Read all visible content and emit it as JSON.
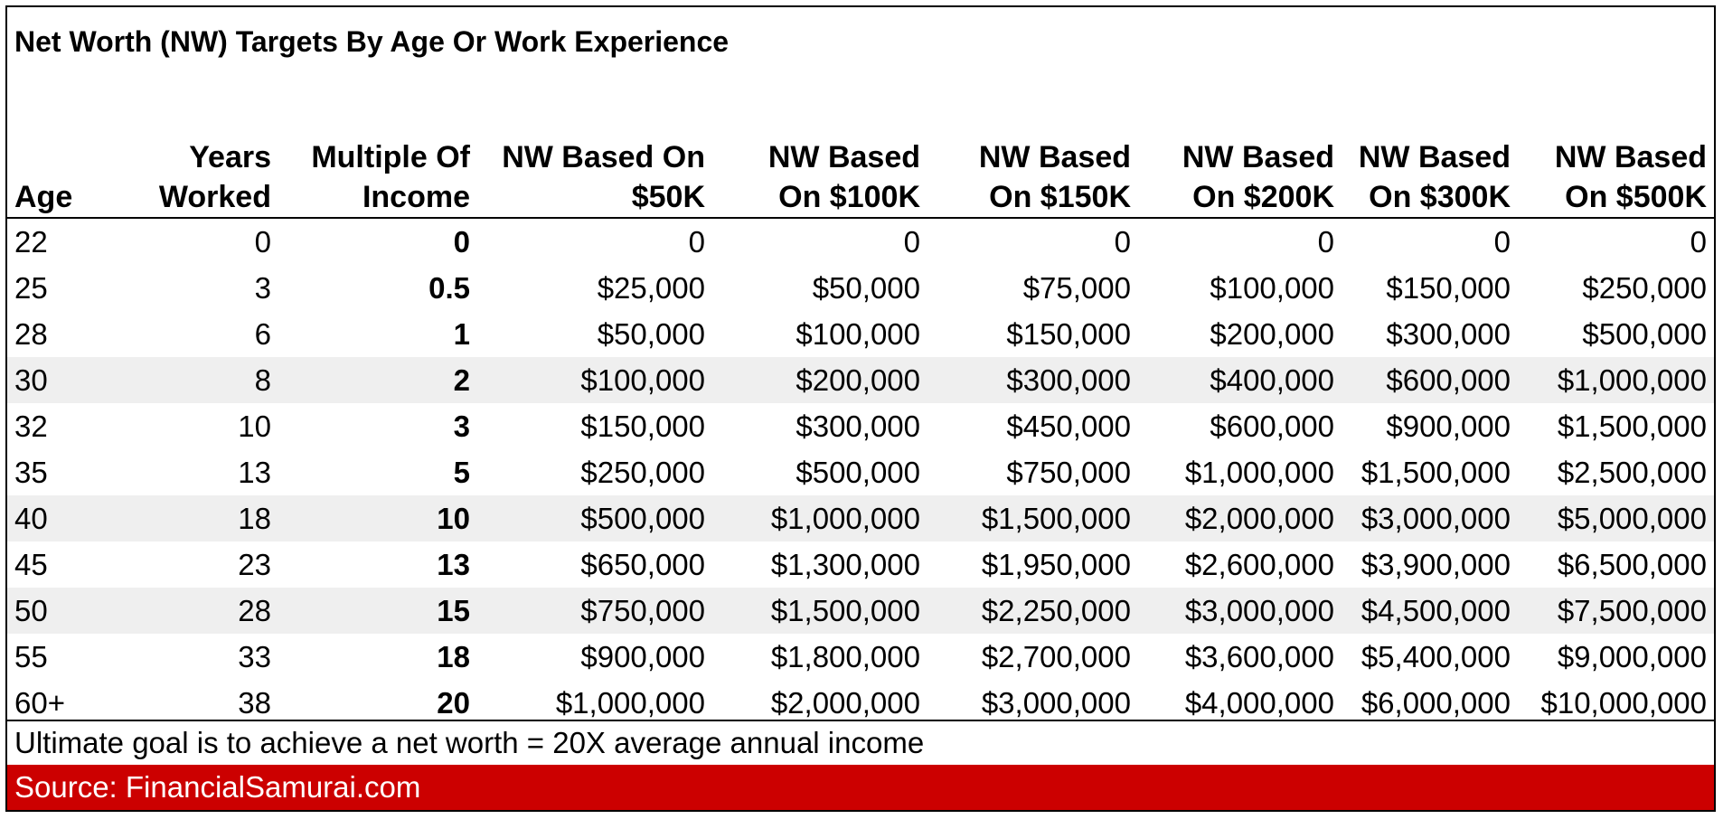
{
  "title": "Net Worth (NW) Targets By Age Or Work Experience",
  "headers": [
    [
      "",
      "Age"
    ],
    [
      "Years",
      "Worked"
    ],
    [
      "Multiple Of",
      "Income"
    ],
    [
      "NW Based On",
      "$50K"
    ],
    [
      "NW Based",
      "On $100K"
    ],
    [
      "NW Based",
      "On $150K"
    ],
    [
      "NW Based",
      "On $200K"
    ],
    [
      "NW Based",
      "On $300K"
    ],
    [
      "NW Based",
      "On $500K"
    ]
  ],
  "rows": [
    {
      "shaded": false,
      "cells": [
        "22",
        "0",
        "0",
        "0",
        "0",
        "0",
        "0",
        "0",
        "0"
      ]
    },
    {
      "shaded": false,
      "cells": [
        "25",
        "3",
        "0.5",
        "$25,000",
        "$50,000",
        "$75,000",
        "$100,000",
        "$150,000",
        "$250,000"
      ]
    },
    {
      "shaded": false,
      "cells": [
        "28",
        "6",
        "1",
        "$50,000",
        "$100,000",
        "$150,000",
        "$200,000",
        "$300,000",
        "$500,000"
      ]
    },
    {
      "shaded": true,
      "cells": [
        "30",
        "8",
        "2",
        "$100,000",
        "$200,000",
        "$300,000",
        "$400,000",
        "$600,000",
        "$1,000,000"
      ]
    },
    {
      "shaded": false,
      "cells": [
        "32",
        "10",
        "3",
        "$150,000",
        "$300,000",
        "$450,000",
        "$600,000",
        "$900,000",
        "$1,500,000"
      ]
    },
    {
      "shaded": false,
      "cells": [
        "35",
        "13",
        "5",
        "$250,000",
        "$500,000",
        "$750,000",
        "$1,000,000",
        "$1,500,000",
        "$2,500,000"
      ]
    },
    {
      "shaded": true,
      "cells": [
        "40",
        "18",
        "10",
        "$500,000",
        "$1,000,000",
        "$1,500,000",
        "$2,000,000",
        "$3,000,000",
        "$5,000,000"
      ]
    },
    {
      "shaded": false,
      "cells": [
        "45",
        "23",
        "13",
        "$650,000",
        "$1,300,000",
        "$1,950,000",
        "$2,600,000",
        "$3,900,000",
        "$6,500,000"
      ]
    },
    {
      "shaded": true,
      "cells": [
        "50",
        "28",
        "15",
        "$750,000",
        "$1,500,000",
        "$2,250,000",
        "$3,000,000",
        "$4,500,000",
        "$7,500,000"
      ]
    },
    {
      "shaded": false,
      "cells": [
        "55",
        "33",
        "18",
        "$900,000",
        "$1,800,000",
        "$2,700,000",
        "$3,600,000",
        "$5,400,000",
        "$9,000,000"
      ]
    },
    {
      "shaded": false,
      "cells": [
        "60+",
        "38",
        "20",
        "$1,000,000",
        "$2,000,000",
        "$3,000,000",
        "$4,000,000",
        "$6,000,000",
        "$10,000,000"
      ]
    }
  ],
  "note": "Ultimate goal is to achieve a net worth = 20X average annual income",
  "source": "Source: FinancialSamurai.com",
  "colors": {
    "source_bar": "#cc0000",
    "shaded_row": "#efefef"
  }
}
